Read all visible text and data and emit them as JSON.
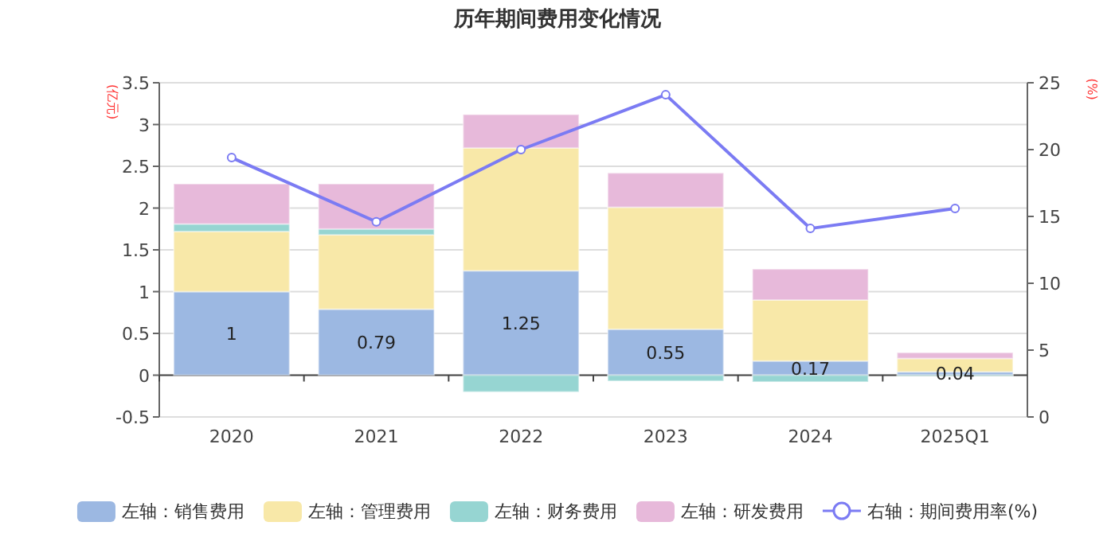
{
  "chart_data": {
    "type": "bar",
    "title": "历年期间费用变化情况",
    "ylabel": "(亿元)",
    "y2label": "(%)",
    "categories": [
      "2020",
      "2021",
      "2022",
      "2023",
      "2024",
      "2025Q1"
    ],
    "stacked": true,
    "legend": "bottom",
    "grid": "y",
    "marker": "circle",
    "line_style": "solid",
    "ylim": [
      -0.5,
      3.5
    ],
    "yticks": [
      -0.5,
      0,
      0.5,
      1,
      1.5,
      2,
      2.5,
      3,
      3.5
    ],
    "y2lim": [
      0,
      25
    ],
    "y2ticks": [
      0,
      5,
      10,
      15,
      20,
      25
    ],
    "series": [
      {
        "name": "左轴：销售费用",
        "color": "#9cb8e2",
        "values": [
          1,
          0.79,
          1.25,
          0.55,
          0.17,
          0.04
        ],
        "value_labels": [
          "1",
          "0.79",
          "1.25",
          "0.55",
          "0.17",
          "0.04"
        ]
      },
      {
        "name": "左轴：管理费用",
        "color": "#f8e8a8",
        "values": [
          0.72,
          0.89,
          1.47,
          1.46,
          0.73,
          0.16
        ]
      },
      {
        "name": "左轴：财务费用",
        "color": "#96d5d2",
        "values": [
          0.09,
          0.07,
          -0.2,
          -0.07,
          -0.08,
          -0.01
        ]
      },
      {
        "name": "左轴：研发费用",
        "color": "#e7b9da",
        "values": [
          0.48,
          0.54,
          0.4,
          0.41,
          0.37,
          0.07
        ]
      },
      {
        "name": "右轴：期间费用率(%)",
        "type": "line",
        "axis": "y2",
        "color": "#7b7bf3",
        "values": [
          19.4,
          14.6,
          20.0,
          24.1,
          14.1,
          15.6
        ]
      }
    ]
  }
}
